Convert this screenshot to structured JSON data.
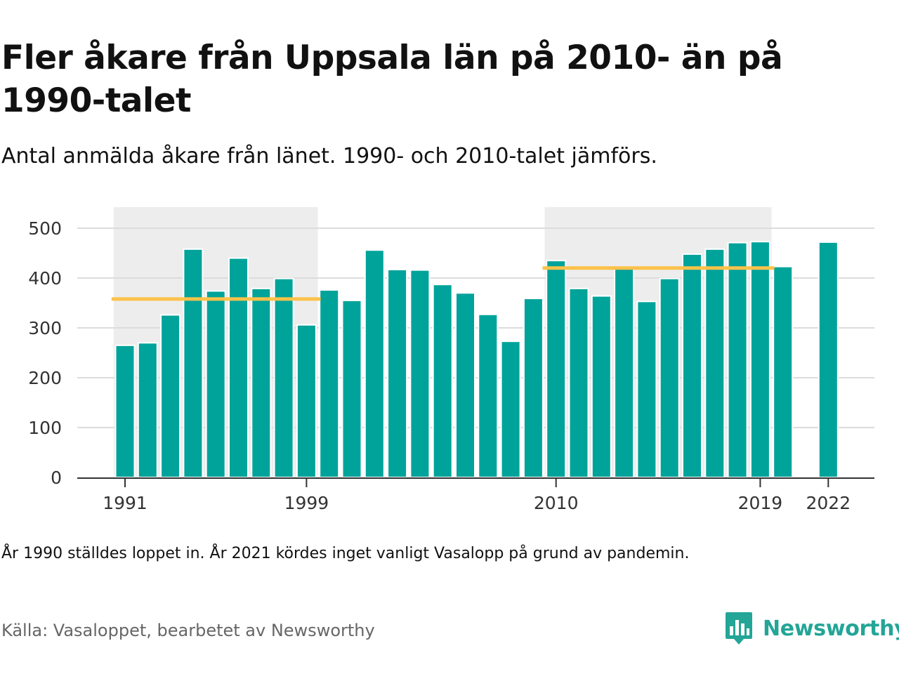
{
  "title": "Fler åkare från Uppsala län på 2010- än på 1990-talet",
  "subtitle": "Antal anmälda åkare från länet. 1990- och 2010-talet jämförs.",
  "note": "År 1990 ställdes loppet in. År 2021 kördes inget vanligt Vasalopp på grund av pandemin.",
  "source": "Källa: Vasaloppet, bearbetet av Newsworthy",
  "logo": {
    "text": "Newsworthy",
    "icon": "newsworthy-chart-bubble-icon"
  },
  "colors": {
    "bar": "#00a39a",
    "average": "#fcc24a",
    "highlight": "#ededed",
    "grid": "#dcdcdc",
    "axis": "#333333"
  },
  "chart_data": {
    "type": "bar",
    "title": "Fler åkare från Uppsala län på 2010- än på 1990-talet",
    "subtitle": "Antal anmälda åkare från länet. 1990- och 2010-talet jämförs.",
    "xlabel": "",
    "ylabel": "",
    "ylim": [
      0,
      550
    ],
    "yticks": [
      0,
      100,
      200,
      300,
      400,
      500
    ],
    "xticks": [
      1991,
      1999,
      2010,
      2019,
      2022
    ],
    "grid": true,
    "legend": "none",
    "x": [
      1991,
      1992,
      1993,
      1994,
      1995,
      1996,
      1997,
      1998,
      1999,
      2000,
      2001,
      2002,
      2003,
      2004,
      2005,
      2006,
      2007,
      2008,
      2009,
      2010,
      2011,
      2012,
      2013,
      2014,
      2015,
      2016,
      2017,
      2018,
      2019,
      2020,
      2021,
      2022
    ],
    "values": [
      265,
      270,
      326,
      458,
      374,
      440,
      379,
      399,
      306,
      376,
      355,
      456,
      417,
      416,
      387,
      370,
      327,
      273,
      359,
      435,
      379,
      364,
      420,
      353,
      399,
      448,
      458,
      471,
      473,
      423,
      null,
      472
    ],
    "highlight_periods": [
      {
        "from": 1991,
        "to": 1999,
        "average": 358
      },
      {
        "from": 2010,
        "to": 2019,
        "average": 420
      }
    ]
  }
}
